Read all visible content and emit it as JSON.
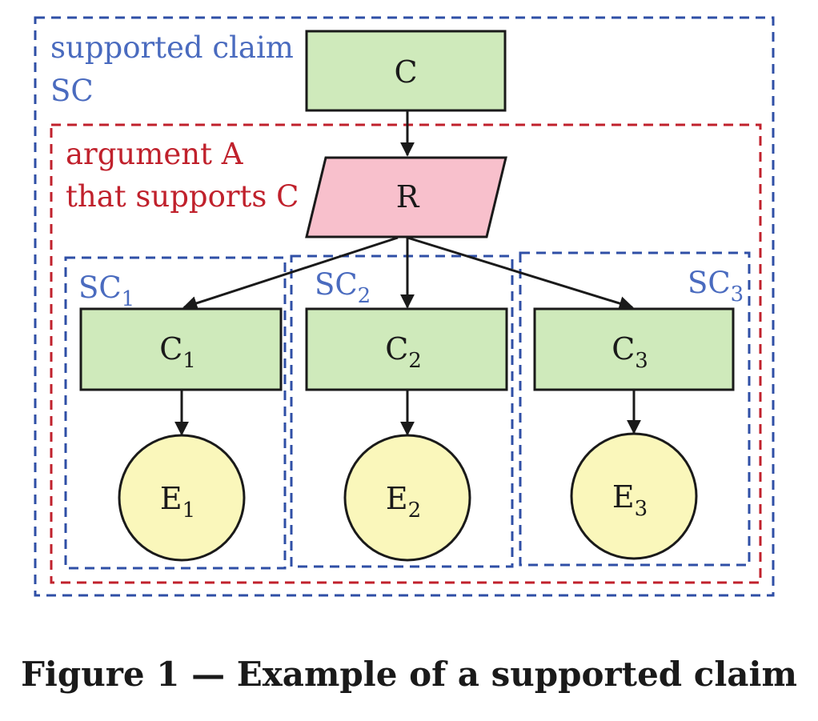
{
  "diagram": {
    "outer_label_line1": "supported claim",
    "outer_label_line2": "SC",
    "argument_label_line1": "argument A",
    "argument_label_line2": "that supports C",
    "claim": "C",
    "reasoning": "R",
    "sub_claims": [
      {
        "group_base": "SC",
        "group_sub": "1",
        "claim_base": "C",
        "claim_sub": "1",
        "evidence_base": "E",
        "evidence_sub": "1"
      },
      {
        "group_base": "SC",
        "group_sub": "2",
        "claim_base": "C",
        "claim_sub": "2",
        "evidence_base": "E",
        "evidence_sub": "2"
      },
      {
        "group_base": "SC",
        "group_sub": "3",
        "claim_base": "C",
        "claim_sub": "3",
        "evidence_base": "E",
        "evidence_sub": "3"
      }
    ],
    "colors": {
      "blue_dash": "#2f4fa6",
      "red_dash": "#c0212c",
      "claim_fill": "#cfeabb",
      "reasoning_fill": "#f8c0cc",
      "evidence_fill": "#faf7bb",
      "stroke": "#1a1a1a"
    }
  },
  "caption": "Figure 1 — Example of a supported claim"
}
